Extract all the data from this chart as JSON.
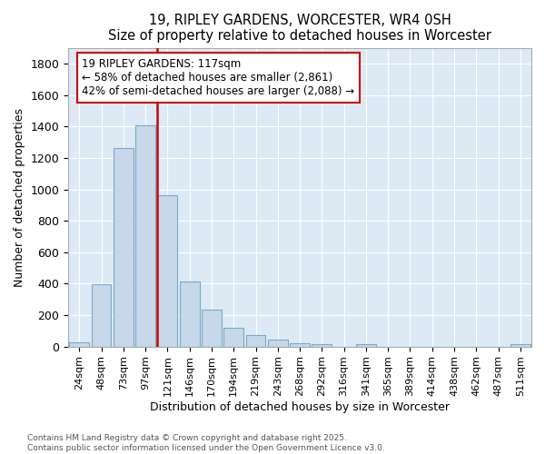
{
  "title": "19, RIPLEY GARDENS, WORCESTER, WR4 0SH",
  "subtitle": "Size of property relative to detached houses in Worcester",
  "xlabel": "Distribution of detached houses by size in Worcester",
  "ylabel": "Number of detached properties",
  "bar_color": "#c6d8ea",
  "bar_edge_color": "#7aaac8",
  "bg_color": "#ddeaf5",
  "grid_color": "#ffffff",
  "annotation_box_color": "#cc0000",
  "property_line_color": "#cc0000",
  "annotation_text_line1": "19 RIPLEY GARDENS: 117sqm",
  "annotation_text_line2": "← 58% of detached houses are smaller (2,861)",
  "annotation_text_line3": "42% of semi-detached houses are larger (2,088) →",
  "categories": [
    "24sqm",
    "48sqm",
    "73sqm",
    "97sqm",
    "121sqm",
    "146sqm",
    "170sqm",
    "194sqm",
    "219sqm",
    "243sqm",
    "268sqm",
    "292sqm",
    "316sqm",
    "341sqm",
    "365sqm",
    "389sqm",
    "414sqm",
    "438sqm",
    "462sqm",
    "487sqm",
    "511sqm"
  ],
  "values": [
    25,
    395,
    1265,
    1405,
    960,
    415,
    235,
    120,
    70,
    45,
    20,
    15,
    0,
    15,
    0,
    0,
    0,
    0,
    0,
    0,
    15
  ],
  "ylim": [
    0,
    1900
  ],
  "yticks": [
    0,
    200,
    400,
    600,
    800,
    1000,
    1200,
    1400,
    1600,
    1800
  ],
  "footnote_line1": "Contains HM Land Registry data © Crown copyright and database right 2025.",
  "footnote_line2": "Contains public sector information licensed under the Open Government Licence v3.0."
}
